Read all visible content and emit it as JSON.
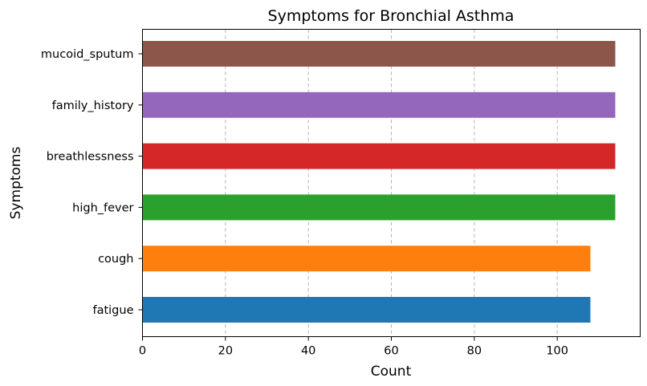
{
  "chart_data": {
    "type": "bar",
    "orientation": "horizontal",
    "title": "Symptoms for Bronchial Asthma",
    "xlabel": "Count",
    "ylabel": "Symptoms",
    "categories": [
      "fatigue",
      "cough",
      "high_fever",
      "breathlessness",
      "family_history",
      "mucoid_sputum"
    ],
    "values": [
      108,
      108,
      114,
      114,
      114,
      114
    ],
    "colors": [
      "#1f77b4",
      "#ff7f0e",
      "#2ca02c",
      "#d62728",
      "#9467bd",
      "#8c564b"
    ],
    "xlim": [
      0,
      120
    ],
    "xticks": [
      0,
      20,
      40,
      60,
      80,
      100
    ],
    "grid": "x-axis dashed",
    "legend": "none"
  }
}
